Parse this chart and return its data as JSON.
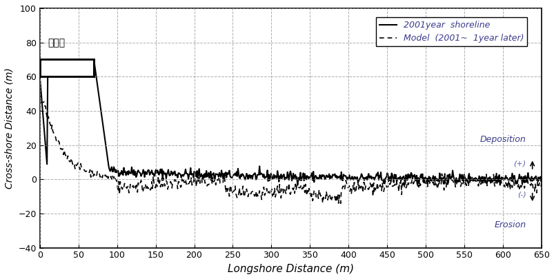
{
  "title": "",
  "xlabel": "Longshore Distance (m)",
  "ylabel": "Cross-shore Distance (m)",
  "xlim": [
    0,
    650
  ],
  "ylim": [
    -40,
    100
  ],
  "xticks": [
    0,
    50,
    100,
    150,
    200,
    250,
    300,
    350,
    400,
    450,
    500,
    550,
    600,
    650
  ],
  "yticks": [
    -40,
    -20,
    0,
    20,
    40,
    60,
    80,
    100
  ],
  "legend_labels": [
    "2001year  shoreline",
    "Model  (2001~  1year later)"
  ],
  "annotation_deposition": "Deposition",
  "annotation_erosion": "Erosion",
  "annotation_plus": "(+)",
  "annotation_minus": "(-)",
  "annotation_label": "도류제",
  "bg_color": "#ffffff",
  "line_color": "#000000",
  "text_color": "#5b5ea6",
  "grid_color": "#888888"
}
